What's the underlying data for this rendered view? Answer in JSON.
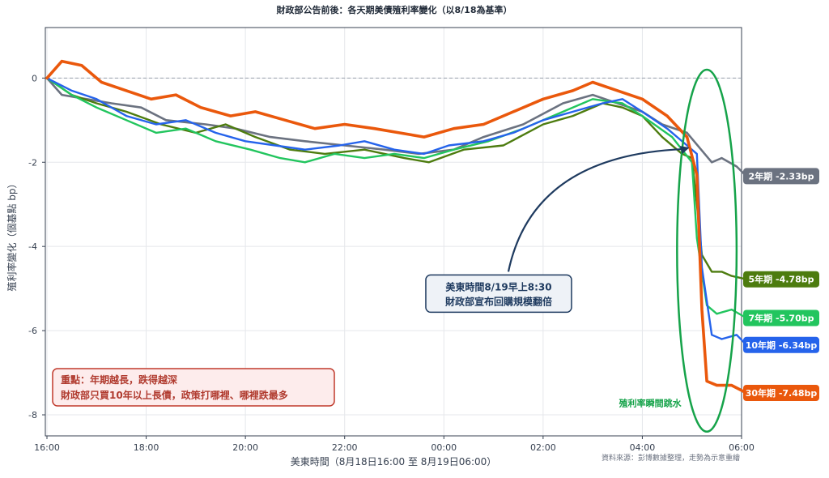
{
  "chart_data": {
    "type": "line",
    "title": "財政部公告前後：各天期美債殖利率變化（以8/18為基準）",
    "xlabel": "美東時間（8月18日16:00 至 8月19日06:00）",
    "ylabel": "殖利率變化（個基點 bp）",
    "x_ticks": [
      "16:00",
      "18:00",
      "20:00",
      "22:00",
      "00:00",
      "02:00",
      "04:00",
      "06:00"
    ],
    "x_range_hours": [
      0,
      14
    ],
    "ylim": [
      -8.5,
      1.2
    ],
    "y_ticks": [
      0,
      -2,
      -4,
      -6,
      -8
    ],
    "grid": true,
    "reference_line": 0,
    "series": [
      {
        "name": "2年期",
        "end_label": "2年期 -2.33bp",
        "color": "#6b7280",
        "points": [
          [
            0,
            0.0
          ],
          [
            0.3,
            -0.4
          ],
          [
            0.8,
            -0.5
          ],
          [
            1.3,
            -0.6
          ],
          [
            1.9,
            -0.7
          ],
          [
            2.4,
            -1.0
          ],
          [
            3.2,
            -1.1
          ],
          [
            3.8,
            -1.2
          ],
          [
            4.5,
            -1.4
          ],
          [
            5.2,
            -1.5
          ],
          [
            6.0,
            -1.6
          ],
          [
            6.8,
            -1.7
          ],
          [
            7.5,
            -1.8
          ],
          [
            8.2,
            -1.7
          ],
          [
            8.8,
            -1.4
          ],
          [
            9.6,
            -1.1
          ],
          [
            10.4,
            -0.6
          ],
          [
            11.0,
            -0.4
          ],
          [
            11.5,
            -0.6
          ],
          [
            12.0,
            -0.8
          ],
          [
            12.4,
            -1.1
          ],
          [
            12.9,
            -1.3
          ],
          [
            13.4,
            -2.0
          ],
          [
            13.6,
            -1.9
          ],
          [
            13.9,
            -2.1
          ],
          [
            14.1,
            -2.33
          ]
        ]
      },
      {
        "name": "5年期",
        "end_label": "5年期 -4.78bp",
        "color": "#4d7c0f",
        "points": [
          [
            0,
            0.0
          ],
          [
            0.5,
            -0.4
          ],
          [
            1.0,
            -0.6
          ],
          [
            1.6,
            -0.8
          ],
          [
            2.3,
            -1.1
          ],
          [
            3.0,
            -1.3
          ],
          [
            3.6,
            -1.1
          ],
          [
            4.2,
            -1.4
          ],
          [
            4.9,
            -1.7
          ],
          [
            5.6,
            -1.8
          ],
          [
            6.4,
            -1.7
          ],
          [
            7.2,
            -1.9
          ],
          [
            7.7,
            -2.0
          ],
          [
            8.4,
            -1.7
          ],
          [
            9.2,
            -1.6
          ],
          [
            10.0,
            -1.1
          ],
          [
            10.6,
            -0.9
          ],
          [
            11.2,
            -0.6
          ],
          [
            11.6,
            -0.7
          ],
          [
            12.0,
            -0.9
          ],
          [
            12.4,
            -1.4
          ],
          [
            12.8,
            -1.8
          ],
          [
            13.0,
            -1.9
          ],
          [
            13.1,
            -3.0
          ],
          [
            13.2,
            -4.2
          ],
          [
            13.4,
            -4.6
          ],
          [
            13.6,
            -4.6
          ],
          [
            13.8,
            -4.7
          ],
          [
            14.1,
            -4.78
          ]
        ]
      },
      {
        "name": "7年期",
        "end_label": "7年期 -5.70bp",
        "color": "#22c55e",
        "points": [
          [
            0,
            0.0
          ],
          [
            0.5,
            -0.4
          ],
          [
            1.0,
            -0.7
          ],
          [
            1.6,
            -1.0
          ],
          [
            2.2,
            -1.3
          ],
          [
            2.8,
            -1.2
          ],
          [
            3.4,
            -1.5
          ],
          [
            4.1,
            -1.7
          ],
          [
            4.7,
            -1.9
          ],
          [
            5.2,
            -2.0
          ],
          [
            5.8,
            -1.8
          ],
          [
            6.4,
            -1.9
          ],
          [
            7.0,
            -1.8
          ],
          [
            7.6,
            -1.9
          ],
          [
            8.2,
            -1.7
          ],
          [
            8.9,
            -1.5
          ],
          [
            9.6,
            -1.2
          ],
          [
            10.4,
            -0.8
          ],
          [
            11.0,
            -0.5
          ],
          [
            11.6,
            -0.6
          ],
          [
            12.0,
            -0.9
          ],
          [
            12.6,
            -1.4
          ],
          [
            13.0,
            -2.0
          ],
          [
            13.1,
            -3.8
          ],
          [
            13.3,
            -5.4
          ],
          [
            13.5,
            -5.6
          ],
          [
            13.8,
            -5.5
          ],
          [
            14.1,
            -5.7
          ]
        ]
      },
      {
        "name": "10年期",
        "end_label": "10年期 -6.34bp",
        "color": "#2563eb",
        "points": [
          [
            0,
            0.0
          ],
          [
            0.5,
            -0.3
          ],
          [
            1.0,
            -0.5
          ],
          [
            1.6,
            -0.9
          ],
          [
            2.2,
            -1.1
          ],
          [
            2.8,
            -1.0
          ],
          [
            3.4,
            -1.3
          ],
          [
            4.0,
            -1.5
          ],
          [
            4.6,
            -1.6
          ],
          [
            5.2,
            -1.7
          ],
          [
            5.9,
            -1.6
          ],
          [
            6.4,
            -1.5
          ],
          [
            7.0,
            -1.7
          ],
          [
            7.6,
            -1.8
          ],
          [
            8.1,
            -1.6
          ],
          [
            8.8,
            -1.5
          ],
          [
            9.4,
            -1.3
          ],
          [
            10.0,
            -1.0
          ],
          [
            10.6,
            -0.8
          ],
          [
            11.2,
            -0.6
          ],
          [
            11.6,
            -0.5
          ],
          [
            12.0,
            -0.8
          ],
          [
            12.5,
            -1.2
          ],
          [
            12.9,
            -1.6
          ],
          [
            13.1,
            -1.8
          ],
          [
            13.2,
            -4.5
          ],
          [
            13.4,
            -6.1
          ],
          [
            13.6,
            -6.2
          ],
          [
            13.9,
            -6.1
          ],
          [
            14.1,
            -6.34
          ]
        ]
      },
      {
        "name": "30年期",
        "end_label": "30年期 -7.48bp",
        "color": "#ea580c",
        "points": [
          [
            0,
            0.0
          ],
          [
            0.3,
            0.4
          ],
          [
            0.7,
            0.3
          ],
          [
            1.1,
            -0.1
          ],
          [
            1.6,
            -0.3
          ],
          [
            2.1,
            -0.5
          ],
          [
            2.6,
            -0.4
          ],
          [
            3.1,
            -0.7
          ],
          [
            3.7,
            -0.9
          ],
          [
            4.2,
            -0.8
          ],
          [
            4.8,
            -1.0
          ],
          [
            5.4,
            -1.2
          ],
          [
            6.0,
            -1.1
          ],
          [
            6.6,
            -1.2
          ],
          [
            7.1,
            -1.3
          ],
          [
            7.6,
            -1.4
          ],
          [
            8.2,
            -1.2
          ],
          [
            8.8,
            -1.1
          ],
          [
            9.4,
            -0.8
          ],
          [
            10.0,
            -0.5
          ],
          [
            10.6,
            -0.3
          ],
          [
            11.0,
            -0.1
          ],
          [
            11.5,
            -0.3
          ],
          [
            12.0,
            -0.5
          ],
          [
            12.5,
            -0.9
          ],
          [
            12.9,
            -1.4
          ],
          [
            13.1,
            -2.3
          ],
          [
            13.2,
            -5.5
          ],
          [
            13.3,
            -7.2
          ],
          [
            13.5,
            -7.3
          ],
          [
            13.8,
            -7.3
          ],
          [
            14.1,
            -7.48
          ]
        ]
      }
    ],
    "annotations": {
      "callout": {
        "line1": "美東時間8/19早上8:30",
        "line2": "財政部宣布回購規模翻倍",
        "arrow_target": [
          12.95,
          -1.65
        ],
        "arrow_from": [
          9.3,
          -4.6
        ]
      },
      "highlight_box": {
        "line1": "重點：年期越長，跌得越深",
        "line2": "財政部只買10年以上長債，政策打哪裡、哪裡跌最多"
      },
      "jump_label": "殖利率瞬間跳水",
      "source": "資料來源：彭博數據整理，走勢為示意重繪",
      "ellipse_center": [
        13.3,
        -4.1
      ],
      "ellipse_radius": [
        0.6,
        4.3
      ]
    }
  }
}
